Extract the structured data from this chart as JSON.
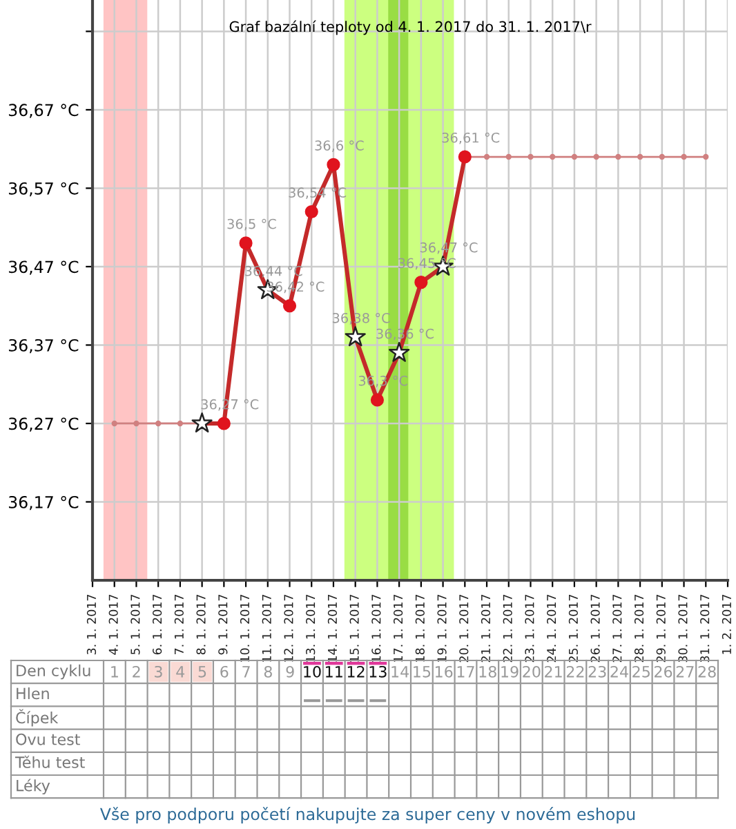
{
  "chart_data": [
    {
      "type": "line",
      "title": "Graf bazální teploty od 4. 1. 2017 do 31. 1. 2017\\r",
      "xlim": [
        "2017-01-03",
        "2017-02-01"
      ],
      "xticks": [
        {
          "value": "2017-01-03",
          "label": "3. 1. 2017"
        },
        {
          "value": "2017-01-04",
          "label": "4. 1. 2017"
        },
        {
          "value": "2017-01-05",
          "label": "5. 1. 2017"
        },
        {
          "value": "2017-01-06",
          "label": "6. 1. 2017"
        },
        {
          "value": "2017-01-07",
          "label": "7. 1. 2017"
        },
        {
          "value": "2017-01-08",
          "label": "8. 1. 2017"
        },
        {
          "value": "2017-01-09",
          "label": "9. 1. 2017"
        },
        {
          "value": "2017-01-10",
          "label": "10. 1. 2017"
        },
        {
          "value": "2017-01-11",
          "label": "11. 1. 2017"
        },
        {
          "value": "2017-01-12",
          "label": "12. 1. 2017"
        },
        {
          "value": "2017-01-13",
          "label": "13. 1. 2017"
        },
        {
          "value": "2017-01-14",
          "label": "14. 1. 2017"
        },
        {
          "value": "2017-01-15",
          "label": "15. 1. 2017"
        },
        {
          "value": "2017-01-16",
          "label": "16. 1. 2017"
        },
        {
          "value": "2017-01-17",
          "label": "17. 1. 2017"
        },
        {
          "value": "2017-01-18",
          "label": "18. 1. 2017"
        },
        {
          "value": "2017-01-19",
          "label": "19. 1. 2017"
        },
        {
          "value": "2017-01-20",
          "label": "20. 1. 2017"
        },
        {
          "value": "2017-01-21",
          "label": "21. 1. 2017"
        },
        {
          "value": "2017-01-22",
          "label": "22. 1. 2017"
        },
        {
          "value": "2017-01-23",
          "label": "23. 1. 2017"
        },
        {
          "value": "2017-01-24",
          "label": "24. 1. 2017"
        },
        {
          "value": "2017-01-25",
          "label": "25. 1. 2017"
        },
        {
          "value": "2017-01-26",
          "label": "26. 1. 2017"
        },
        {
          "value": "2017-01-27",
          "label": "27. 1. 2017"
        },
        {
          "value": "2017-01-28",
          "label": "28. 1. 2017"
        },
        {
          "value": "2017-01-29",
          "label": "29. 1. 2017"
        },
        {
          "value": "2017-01-30",
          "label": "30. 1. 2017"
        },
        {
          "value": "2017-01-31",
          "label": "31. 1. 2017"
        },
        {
          "value": "2017-02-01",
          "label": "1. 2. 2017"
        }
      ],
      "ylim": [
        36.07,
        36.81
      ],
      "yticks": [
        {
          "value": 36.17,
          "label": "36,17 °C"
        },
        {
          "value": 36.27,
          "label": "36,27 °C"
        },
        {
          "value": 36.37,
          "label": "36,37 °C"
        },
        {
          "value": 36.47,
          "label": "36,47 °C"
        },
        {
          "value": 36.57,
          "label": "36,57 °C"
        },
        {
          "value": 36.67,
          "label": "36,67 °C"
        },
        {
          "value": 36.77,
          "label": null
        }
      ],
      "grid": true,
      "bands": [
        {
          "axis": "x",
          "from": "2017-01-03T12:00",
          "to": "2017-01-05T12:00",
          "color": "#ffc4c4"
        },
        {
          "axis": "x",
          "from": "2017-01-14T12:00",
          "to": "2017-01-19T12:00",
          "color": "#ccff80"
        },
        {
          "axis": "x",
          "from": "2017-01-16T12:00",
          "to": "2017-01-17T10:00",
          "color": "#99dd44"
        }
      ],
      "series": [
        {
          "type": "line",
          "color": "#d08080",
          "marker": "circle",
          "line_style": "solid",
          "x": [
            "2017-01-04",
            "2017-01-05",
            "2017-01-06",
            "2017-01-07",
            "2017-01-08"
          ],
          "values": [
            36.27,
            36.27,
            36.27,
            36.27,
            36.27
          ]
        },
        {
          "type": "line",
          "color": "#d08080",
          "marker": "circle",
          "line_style": "solid",
          "x": [
            "2017-01-20",
            "2017-01-21",
            "2017-01-22",
            "2017-01-23",
            "2017-01-24",
            "2017-01-25",
            "2017-01-26",
            "2017-01-27",
            "2017-01-28",
            "2017-01-29",
            "2017-01-30",
            "2017-01-31"
          ],
          "values": [
            36.61,
            36.61,
            36.61,
            36.61,
            36.61,
            36.61,
            36.61,
            36.61,
            36.61,
            36.61,
            36.61,
            36.61
          ]
        },
        {
          "type": "line",
          "color": "#c42a2a",
          "marker": "none",
          "line_style": "solid",
          "x": [
            "2017-01-08",
            "2017-01-09",
            "2017-01-10",
            "2017-01-11",
            "2017-01-12",
            "2017-01-13",
            "2017-01-14",
            "2017-01-15",
            "2017-01-16",
            "2017-01-17",
            "2017-01-18",
            "2017-01-19",
            "2017-01-20"
          ],
          "values": [
            36.27,
            36.27,
            36.5,
            36.44,
            36.42,
            36.54,
            36.6,
            36.38,
            36.3,
            36.36,
            36.45,
            36.47,
            36.61
          ]
        },
        {
          "type": "scatter",
          "color": "#e0141e",
          "marker": "circle",
          "x": [
            "2017-01-09",
            "2017-01-10",
            "2017-01-12",
            "2017-01-13",
            "2017-01-14",
            "2017-01-16",
            "2017-01-18",
            "2017-01-20"
          ],
          "values": [
            36.27,
            36.5,
            36.42,
            36.54,
            36.6,
            36.3,
            36.45,
            36.61
          ],
          "value_labels": [
            "36,27 °C",
            "36,5 °C",
            "36,42 °C",
            "36,54 °C",
            "36,6 °C",
            "36,3 °C",
            "36,45 °C",
            "36,61 °C"
          ]
        },
        {
          "type": "scatter",
          "color": "#ffffff",
          "marker": "star",
          "x": [
            "2017-01-08",
            "2017-01-11",
            "2017-01-15",
            "2017-01-17",
            "2017-01-19"
          ],
          "values": [
            36.27,
            36.44,
            36.38,
            36.36,
            36.47
          ],
          "value_labels": [
            null,
            "36,44 °C",
            "36,38 °C",
            "36,36 °C",
            "36,47 °C"
          ]
        }
      ]
    },
    {
      "type": "heatmap",
      "xlabel": "Den cyklu",
      "categories": [
        "1",
        "2",
        "3",
        "4",
        "5",
        "6",
        "7",
        "8",
        "9",
        "10",
        "11",
        "12",
        "13",
        "14",
        "15",
        "16",
        "17",
        "18",
        "19",
        "20",
        "21",
        "22",
        "23",
        "24",
        "25",
        "26",
        "27",
        "28"
      ],
      "y_categories": [
        "Hlen",
        "Čípek",
        "Ovu test",
        "Těhu test",
        "Léky"
      ],
      "cells": [
        [
          null,
          null,
          null,
          null,
          null,
          null,
          null,
          null,
          null,
          null,
          null,
          null,
          null,
          null,
          null,
          null,
          null,
          null,
          null,
          null,
          null,
          null,
          null,
          null,
          null,
          null,
          null,
          null
        ],
        [
          null,
          null,
          null,
          null,
          null,
          null,
          null,
          null,
          null,
          null,
          null,
          null,
          null,
          null,
          null,
          null,
          null,
          null,
          null,
          null,
          null,
          null,
          null,
          null,
          null,
          null,
          null,
          null
        ],
        [
          null,
          null,
          null,
          null,
          null,
          null,
          null,
          null,
          null,
          null,
          null,
          null,
          null,
          null,
          null,
          null,
          null,
          null,
          null,
          null,
          null,
          null,
          null,
          null,
          null,
          null,
          null,
          null
        ],
        [
          null,
          null,
          null,
          null,
          null,
          null,
          null,
          null,
          null,
          null,
          null,
          null,
          null,
          null,
          null,
          null,
          null,
          null,
          null,
          null,
          null,
          null,
          null,
          null,
          null,
          null,
          null,
          null
        ],
        [
          null,
          null,
          null,
          null,
          null,
          null,
          null,
          null,
          null,
          null,
          null,
          null,
          null,
          null,
          null,
          null,
          null,
          null,
          null,
          null,
          null,
          null,
          null,
          null,
          null,
          null,
          null,
          null
        ]
      ],
      "annotations": [
        "Vše pro podporu početí nakupujte za super ceny v novém eshopu"
      ]
    }
  ]
}
